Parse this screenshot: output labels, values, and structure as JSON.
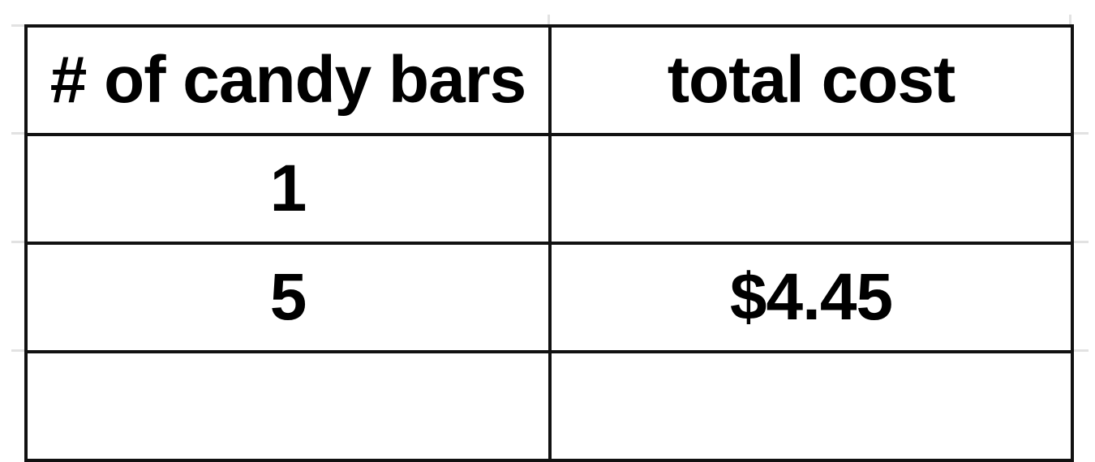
{
  "table": {
    "headers": [
      "# of candy bars",
      "total cost"
    ],
    "rows": [
      [
        "1",
        ""
      ],
      [
        "5",
        "$4.45"
      ],
      [
        "",
        ""
      ]
    ]
  }
}
